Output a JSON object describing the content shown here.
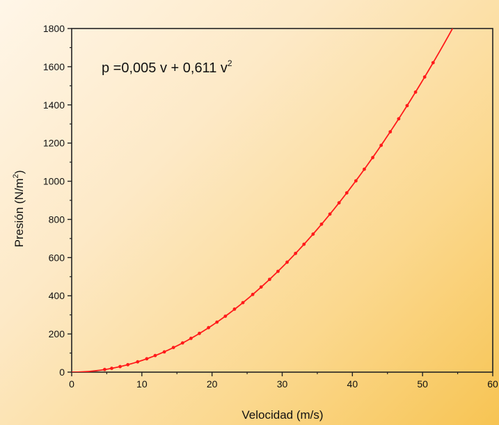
{
  "chart_data": {
    "type": "scatter",
    "xlabel": "Velocidad (m/s)",
    "ylabel_main": "Presión (N/m",
    "ylabel_sup": "2",
    "ylabel_close": ")",
    "xlim": [
      0,
      60
    ],
    "ylim": [
      0,
      1800
    ],
    "xticks": [
      0,
      10,
      20,
      30,
      40,
      50,
      60
    ],
    "yticks": [
      0,
      200,
      400,
      600,
      800,
      1000,
      1200,
      1400,
      1600,
      1800
    ],
    "annotation_main": "p =0,005 v + 0,611 v",
    "annotation_sup": "2",
    "fit": {
      "a": 0.005,
      "b": 0.611,
      "x_range": [
        0,
        54.3
      ],
      "color": "#ff1a1a"
    },
    "marker_color": "#ff1a1a",
    "points": [
      {
        "x": 4.7,
        "y": 14
      },
      {
        "x": 5.7,
        "y": 20
      },
      {
        "x": 6.9,
        "y": 29
      },
      {
        "x": 8.0,
        "y": 39
      },
      {
        "x": 9.4,
        "y": 54
      },
      {
        "x": 10.7,
        "y": 70
      },
      {
        "x": 11.9,
        "y": 87
      },
      {
        "x": 13.2,
        "y": 106
      },
      {
        "x": 14.5,
        "y": 129
      },
      {
        "x": 15.8,
        "y": 153
      },
      {
        "x": 17.0,
        "y": 177
      },
      {
        "x": 18.2,
        "y": 203
      },
      {
        "x": 19.5,
        "y": 233
      },
      {
        "x": 20.7,
        "y": 262
      },
      {
        "x": 21.9,
        "y": 293
      },
      {
        "x": 23.2,
        "y": 330
      },
      {
        "x": 24.4,
        "y": 364
      },
      {
        "x": 25.8,
        "y": 407
      },
      {
        "x": 27.0,
        "y": 446
      },
      {
        "x": 28.2,
        "y": 486
      },
      {
        "x": 29.4,
        "y": 528
      },
      {
        "x": 30.7,
        "y": 576
      },
      {
        "x": 31.9,
        "y": 622
      },
      {
        "x": 33.1,
        "y": 670
      },
      {
        "x": 34.4,
        "y": 723
      },
      {
        "x": 35.6,
        "y": 775
      },
      {
        "x": 36.8,
        "y": 828
      },
      {
        "x": 38.1,
        "y": 887
      },
      {
        "x": 39.2,
        "y": 939
      },
      {
        "x": 40.5,
        "y": 1002
      },
      {
        "x": 41.7,
        "y": 1063
      },
      {
        "x": 42.9,
        "y": 1124
      },
      {
        "x": 44.1,
        "y": 1188
      },
      {
        "x": 45.4,
        "y": 1259
      },
      {
        "x": 46.6,
        "y": 1327
      },
      {
        "x": 47.8,
        "y": 1396
      },
      {
        "x": 49.0,
        "y": 1467
      },
      {
        "x": 50.3,
        "y": 1546
      },
      {
        "x": 51.5,
        "y": 1621
      }
    ]
  }
}
